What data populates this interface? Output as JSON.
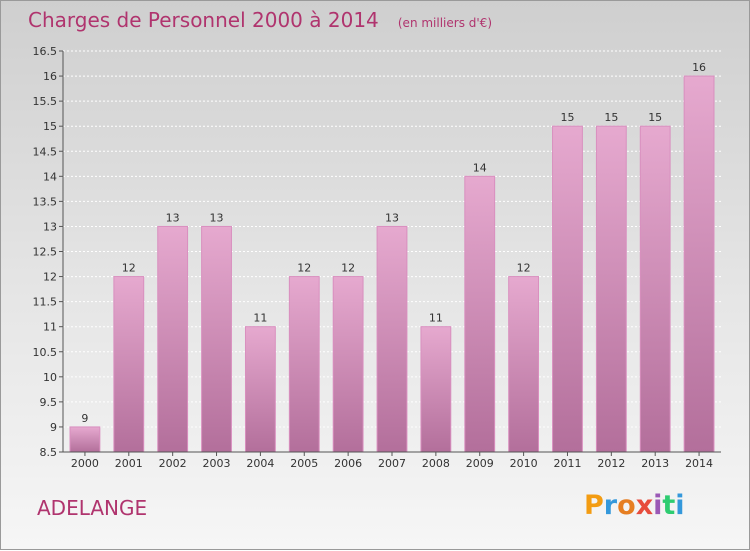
{
  "header": {
    "title": "Charges de Personnel 2000 à 2014",
    "unit": "(en milliers d'€)"
  },
  "footer": {
    "commune": "ADELANGE",
    "logo_letters": [
      "P",
      "r",
      "o",
      "x",
      "i",
      "t",
      "i"
    ],
    "logo_colors": [
      "#f39c12",
      "#3498db",
      "#e67e22",
      "#e74c3c",
      "#9b59b6",
      "#2ecc71",
      "#3498db"
    ]
  },
  "colors": {
    "accent": "#b0346e",
    "bar_top": "#e6a9cf",
    "bar_bottom": "#b36f9b",
    "bar_edge": "#d98fbf"
  },
  "chart_data": {
    "type": "bar",
    "categories": [
      "2000",
      "2001",
      "2002",
      "2003",
      "2004",
      "2005",
      "2006",
      "2007",
      "2008",
      "2009",
      "2010",
      "2011",
      "2012",
      "2013",
      "2014"
    ],
    "values": [
      9,
      12,
      13,
      13,
      11,
      12,
      12,
      13,
      11,
      14,
      12,
      15,
      15,
      15,
      16
    ],
    "data_labels": [
      "9",
      "12",
      "13",
      "13",
      "11",
      "12",
      "12",
      "13",
      "11",
      "14",
      "12",
      "15",
      "15",
      "15",
      "16"
    ],
    "yticks": [
      "8.5",
      "9",
      "9.5",
      "10",
      "10.5",
      "11",
      "11.5",
      "12",
      "12.5",
      "13",
      "13.5",
      "14",
      "14.5",
      "15",
      "15.5",
      "16",
      "16.5"
    ],
    "ylim": [
      8.5,
      16.5
    ],
    "title": "Charges de Personnel 2000 à 2014",
    "xlabel": "",
    "ylabel": "",
    "grid": true
  }
}
